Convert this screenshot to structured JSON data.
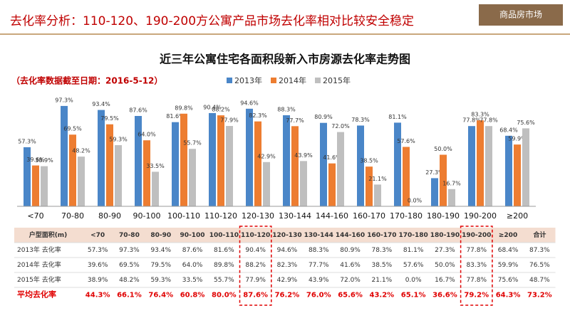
{
  "header": {
    "title": "去化率分析：110-120、190-200方公寓产品市场去化率相对比较安全稳定",
    "badge": "商品房市场"
  },
  "chart_data": {
    "type": "bar",
    "title": "近三年公寓住宅各面积段新入市房源去化率走势图",
    "subtitle": "（去化率数据截至日期：2016-5-12）",
    "categories": [
      "<70",
      "70-80",
      "80-90",
      "90-100",
      "100-110",
      "110-120",
      "120-130",
      "130-144",
      "144-160",
      "160-170",
      "170-180",
      "180-190",
      "190-200",
      "≥200"
    ],
    "series": [
      {
        "name": "2013年",
        "color": "#4a86c8",
        "values": [
          57.3,
          97.3,
          93.4,
          87.6,
          81.6,
          90.4,
          94.6,
          88.3,
          80.9,
          78.3,
          81.1,
          27.3,
          77.8,
          68.4
        ],
        "value_labels": [
          "57.3%",
          "97.3%",
          "93.4%",
          "87.6%",
          "81.6%",
          "90.4%",
          "94.6%",
          "88.3%",
          "80.9%",
          "78.3%",
          "81.1%",
          "27.3%",
          "77.8%",
          "68.4%"
        ]
      },
      {
        "name": "2014年",
        "color": "#ed7d31",
        "values": [
          39.6,
          69.5,
          79.5,
          64.0,
          89.8,
          88.2,
          82.3,
          77.7,
          41.6,
          38.5,
          57.6,
          50.0,
          83.3,
          59.9
        ],
        "value_labels": [
          "39.6%",
          "69.5%",
          "79.5%",
          "64.0%",
          "89.8%",
          "88.2%",
          "82.3%",
          "77.7%",
          "41.6%",
          "38.5%",
          "57.6%",
          "50.0%",
          "83.3%",
          "59.9%"
        ]
      },
      {
        "name": "2015年",
        "color": "#bfbfbf",
        "values": [
          38.9,
          48.2,
          59.3,
          33.5,
          55.7,
          77.9,
          42.9,
          43.9,
          72.0,
          21.1,
          0.0,
          16.7,
          77.8,
          75.6
        ],
        "value_labels": [
          "38.9%",
          "48.2%",
          "59.3%",
          "33.5%",
          "55.7%",
          "77.9%",
          "42.9%",
          "43.9%",
          "72.0%",
          "21.1%",
          "0.0%",
          "16.7%",
          "77.8%",
          "75.6%"
        ]
      }
    ]
  },
  "table": {
    "corner": "户型面积(m)",
    "total_header": "合计",
    "rows": [
      {
        "label": "2013年 去化率",
        "total": "87.3%"
      },
      {
        "label": "2014年 去化率",
        "total": "76.5%"
      },
      {
        "label": "2015年 去化率",
        "total": "48.7%"
      }
    ],
    "average": {
      "label": "平均去化率",
      "values": [
        "44.3%",
        "66.1%",
        "76.4%",
        "60.8%",
        "80.0%",
        "87.6%",
        "76.2%",
        "76.0%",
        "65.6%",
        "43.2%",
        "65.1%",
        "36.6%",
        "79.2%",
        "64.3%"
      ],
      "total": "73.2%"
    }
  }
}
